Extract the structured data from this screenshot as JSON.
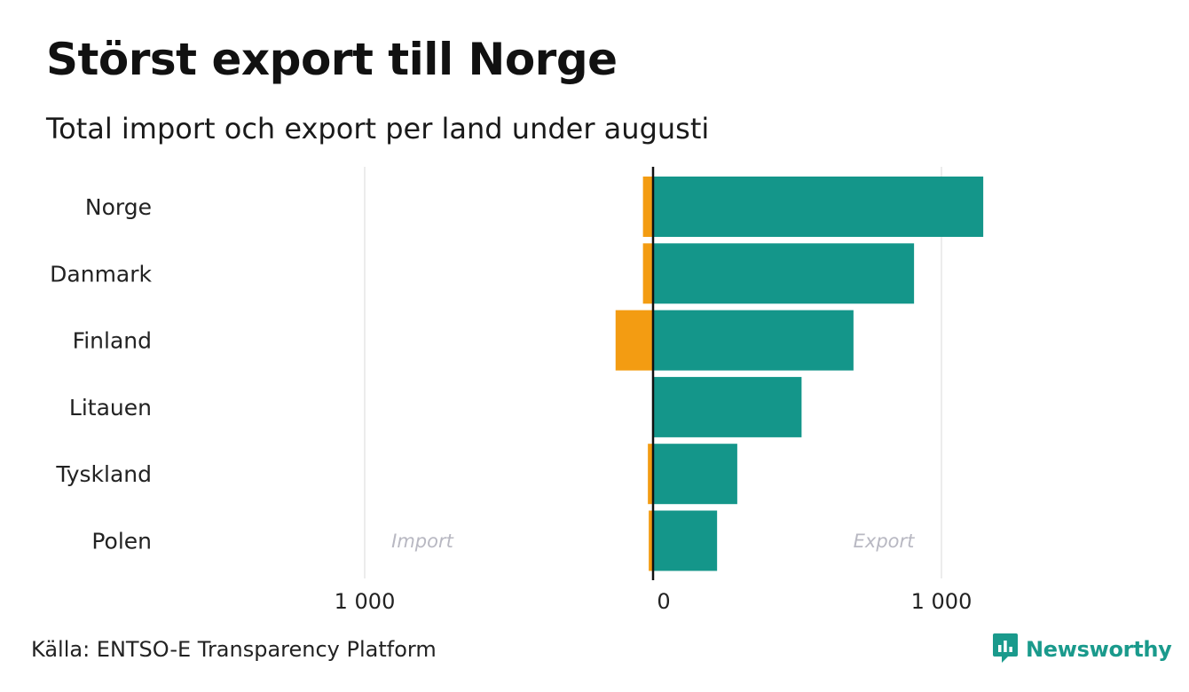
{
  "header": {
    "title": "Störst export till Norge",
    "subtitle": "Total import och export per land under augusti"
  },
  "footer": {
    "source": "Källa: ENTSO-E Transparency Platform",
    "brand": "Newsworthy"
  },
  "colors": {
    "export": "#14968a",
    "import": "#f39c12",
    "brand": "#1a9a8c",
    "annotation": "#b8b8c2",
    "grid": "#e6e6e6"
  },
  "chart_data": {
    "type": "bar",
    "orientation": "horizontal",
    "categories": [
      "Norge",
      "Danmark",
      "Finland",
      "Litauen",
      "Tyskland",
      "Polen"
    ],
    "series": [
      {
        "key": "import",
        "values": [
          35,
          35,
          130,
          0,
          18,
          15
        ]
      },
      {
        "key": "export",
        "values": [
          1145,
          905,
          695,
          515,
          292,
          222
        ]
      }
    ],
    "x_ticks": [
      {
        "value": -1000,
        "label": "1 000"
      },
      {
        "value": 0,
        "label": "0"
      },
      {
        "value": 1000,
        "label": "1 000"
      }
    ],
    "xlim": [
      -1000,
      1000
    ],
    "annotations": {
      "import": "Import",
      "export": "Export"
    },
    "grid": true
  }
}
